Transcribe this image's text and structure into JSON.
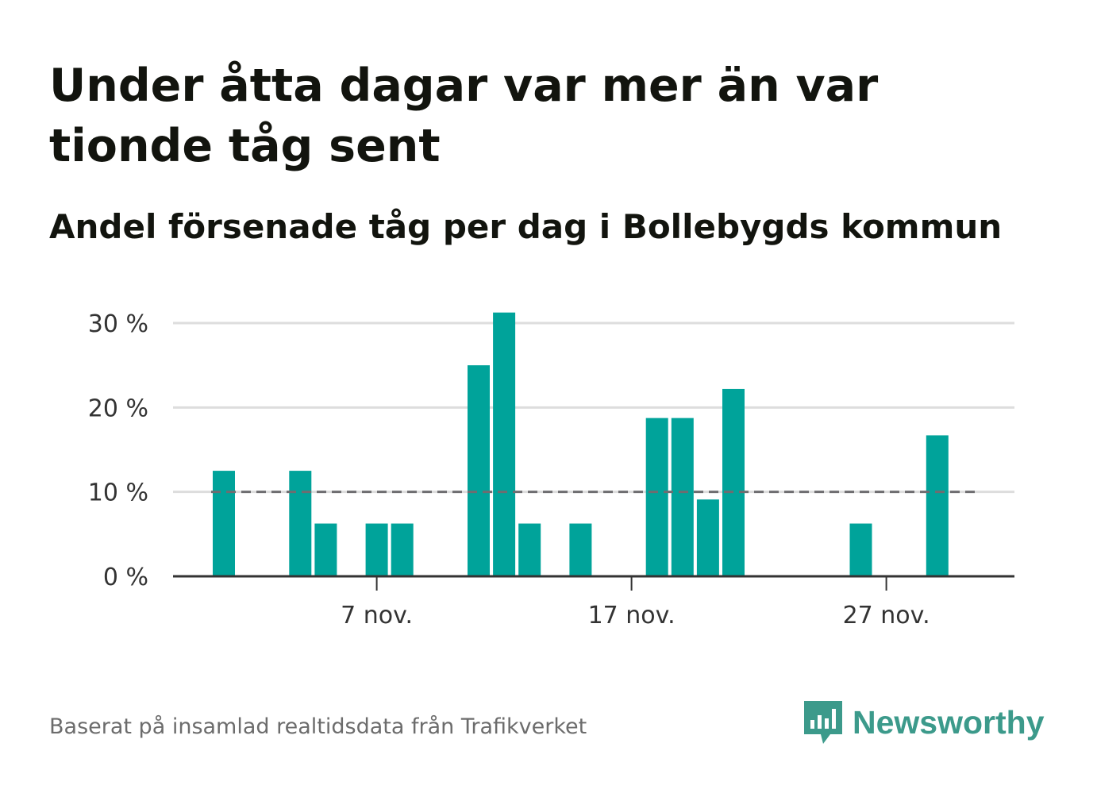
{
  "title": "Under åtta dagar var mer än var tionde tåg sent",
  "subtitle": "Andel försenade tåg per dag i Bollebygds kommun",
  "source": "Baserat på insamlad realtidsdata från Trafikverket",
  "logo": {
    "text": "Newsworthy",
    "icon": "bar-chart-speech-bubble-icon"
  },
  "colors": {
    "bar": "#00a39a",
    "reference_line": "#6e6d70",
    "grid": "#dddddd",
    "axis": "#333333",
    "brand": "#3c9a8b"
  },
  "chart_data": {
    "type": "bar",
    "x": [
      "2023-11-01",
      "2023-11-02",
      "2023-11-03",
      "2023-11-04",
      "2023-11-05",
      "2023-11-06",
      "2023-11-07",
      "2023-11-08",
      "2023-11-09",
      "2023-11-10",
      "2023-11-11",
      "2023-11-12",
      "2023-11-13",
      "2023-11-14",
      "2023-11-15",
      "2023-11-16",
      "2023-11-17",
      "2023-11-18",
      "2023-11-19",
      "2023-11-20",
      "2023-11-21",
      "2023-11-22",
      "2023-11-23",
      "2023-11-24",
      "2023-11-25",
      "2023-11-26",
      "2023-11-27",
      "2023-11-28",
      "2023-11-29"
    ],
    "values": [
      12.5,
      0,
      0,
      12.5,
      6.25,
      0,
      6.25,
      6.25,
      0,
      0,
      25,
      31.25,
      6.25,
      0,
      6.25,
      0,
      0,
      18.75,
      18.75,
      9.1,
      22.2,
      0,
      0,
      0,
      0,
      6.25,
      0,
      0,
      16.7
    ],
    "unit": "%",
    "ylim": [
      0,
      30
    ],
    "yticks": [
      0,
      10,
      20,
      30
    ],
    "ytick_labels": [
      "0 %",
      "10 %",
      "20 %",
      "30 %"
    ],
    "xticks": [
      "2023-11-07",
      "2023-11-17",
      "2023-11-27"
    ],
    "xtick_labels": [
      "7 nov.",
      "17 nov.",
      "27 nov."
    ],
    "reference_line": 10,
    "grid": true
  }
}
